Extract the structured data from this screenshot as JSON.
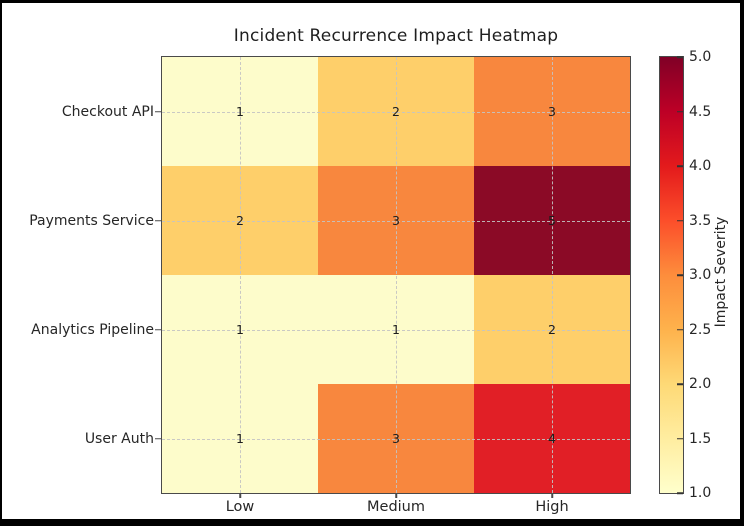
{
  "figure": {
    "background": "#ffffff",
    "frame_color": "#000000"
  },
  "chart_data": {
    "type": "heatmap",
    "title": "Incident Recurrence Impact Heatmap",
    "rows": [
      "Checkout API",
      "Payments Service",
      "Analytics Pipeline",
      "User Auth"
    ],
    "columns": [
      "Low",
      "Medium",
      "High"
    ],
    "values": [
      [
        1,
        2,
        3
      ],
      [
        2,
        3,
        5
      ],
      [
        1,
        1,
        2
      ],
      [
        1,
        3,
        4
      ]
    ],
    "value_range": [
      1,
      5
    ],
    "colormap": "YlOrRd",
    "color_for_value": {
      "1": "#fdfccb",
      "2": "#fecf6a",
      "3": "#f8873e",
      "4": "#e11f26",
      "5": "#8b0a26"
    },
    "grid": "dashed",
    "annotation_color": "#1c1c1c",
    "colorbar": {
      "label": "Impact Severity",
      "min": 1.0,
      "max": 5.0,
      "ticks": [
        1.0,
        1.5,
        2.0,
        2.5,
        3.0,
        3.5,
        4.0,
        4.5,
        5.0
      ],
      "gradient_stops": [
        "#ffffcc",
        "#ffeda0",
        "#fed976",
        "#feb24c",
        "#fd8d3c",
        "#fc4e2a",
        "#e31a1c",
        "#bd0026",
        "#800026"
      ]
    }
  }
}
